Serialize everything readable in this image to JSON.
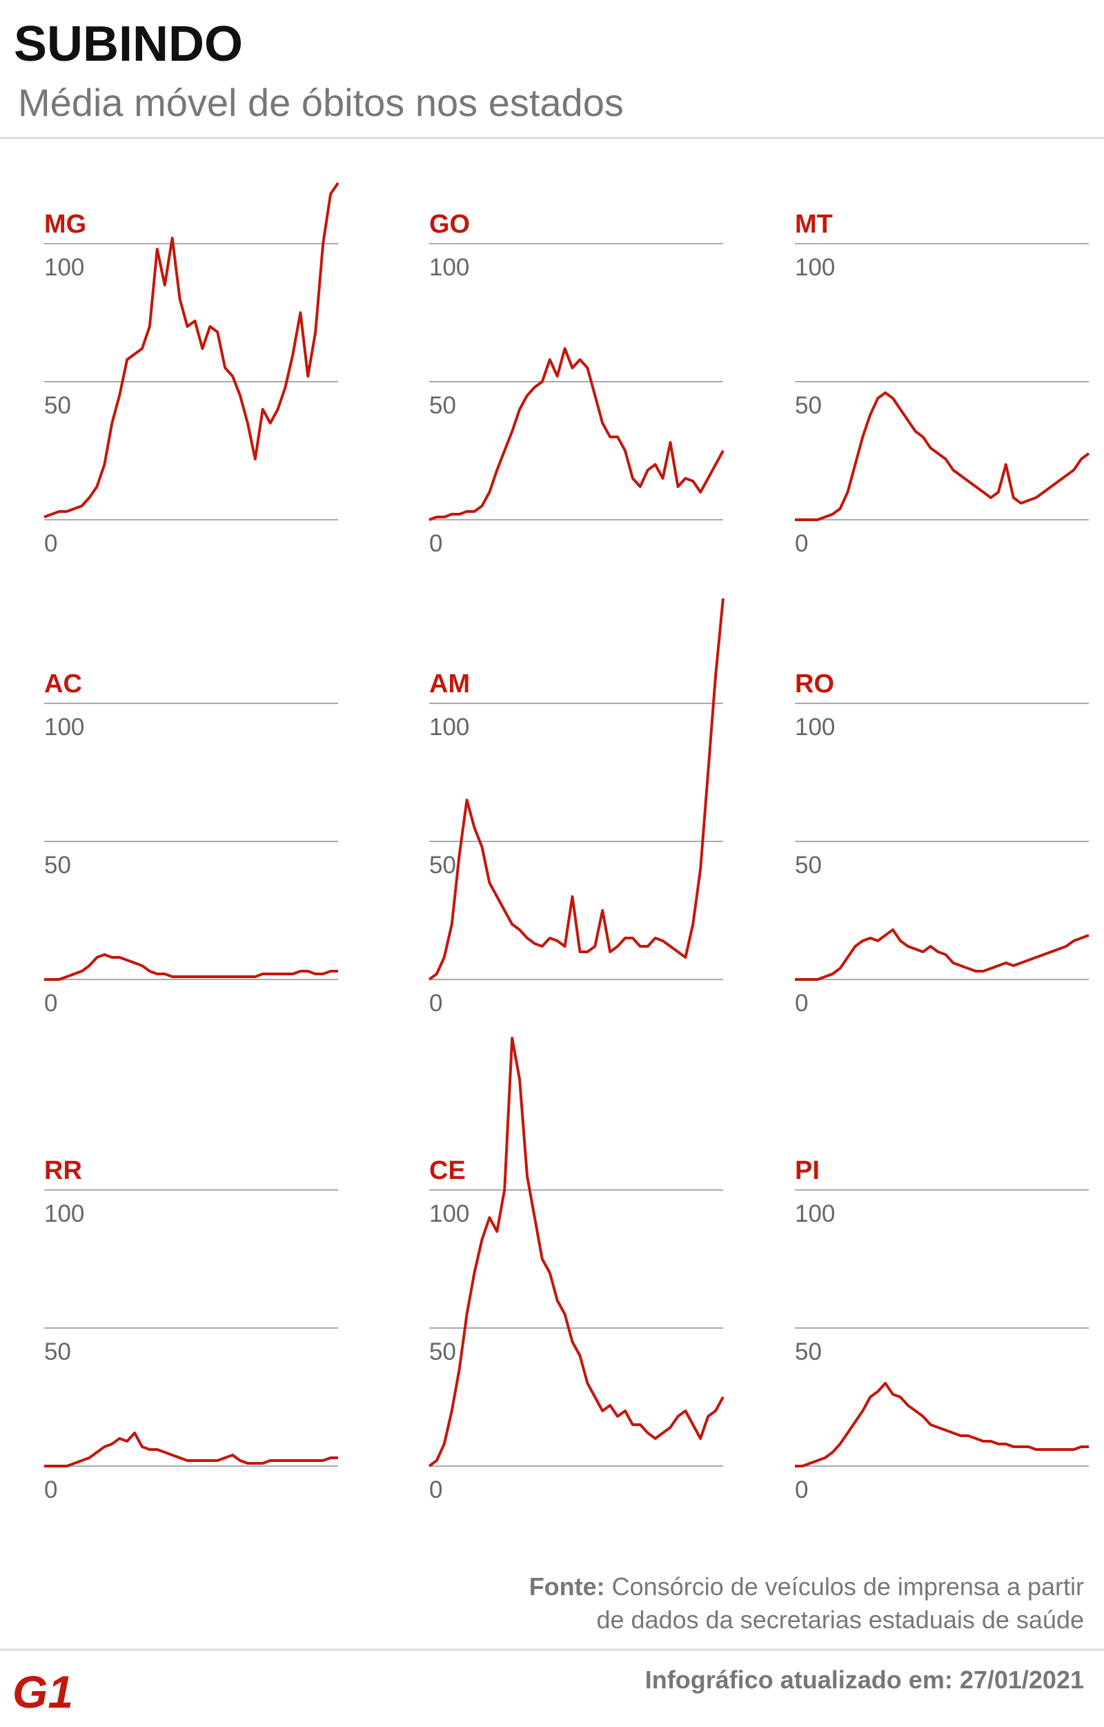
{
  "header": {
    "title": "SUBINDO",
    "subtitle": "Média móvel de óbitos nos estados"
  },
  "chart_data": [
    {
      "type": "line",
      "title": "MG",
      "color": "#c4170c",
      "ylim": [
        0,
        100
      ],
      "yticks": [
        0,
        50,
        100
      ],
      "grid": true,
      "values": [
        1,
        2,
        3,
        3,
        4,
        5,
        8,
        12,
        20,
        35,
        45,
        58,
        60,
        62,
        70,
        98,
        85,
        102,
        80,
        70,
        72,
        62,
        70,
        68,
        55,
        52,
        45,
        35,
        22,
        40,
        35,
        40,
        48,
        60,
        75,
        52,
        68,
        100,
        118,
        122
      ]
    },
    {
      "type": "line",
      "title": "GO",
      "color": "#c4170c",
      "ylim": [
        0,
        100
      ],
      "yticks": [
        0,
        50,
        100
      ],
      "grid": true,
      "values": [
        0,
        1,
        1,
        2,
        2,
        3,
        3,
        5,
        10,
        18,
        25,
        32,
        40,
        45,
        48,
        50,
        58,
        52,
        62,
        55,
        58,
        55,
        45,
        35,
        30,
        30,
        25,
        15,
        12,
        18,
        20,
        15,
        28,
        12,
        15,
        14,
        10,
        15,
        20,
        25
      ]
    },
    {
      "type": "line",
      "title": "MT",
      "color": "#c4170c",
      "ylim": [
        0,
        100
      ],
      "yticks": [
        0,
        50,
        100
      ],
      "grid": true,
      "values": [
        0,
        0,
        0,
        0,
        1,
        2,
        4,
        10,
        20,
        30,
        38,
        44,
        46,
        44,
        40,
        36,
        32,
        30,
        26,
        24,
        22,
        18,
        16,
        14,
        12,
        10,
        8,
        10,
        20,
        8,
        6,
        7,
        8,
        10,
        12,
        14,
        16,
        18,
        22,
        24
      ]
    },
    {
      "type": "line",
      "title": "AC",
      "color": "#c4170c",
      "ylim": [
        0,
        100
      ],
      "yticks": [
        0,
        50,
        100
      ],
      "grid": true,
      "values": [
        0,
        0,
        0,
        1,
        2,
        3,
        5,
        8,
        9,
        8,
        8,
        7,
        6,
        5,
        3,
        2,
        2,
        1,
        1,
        1,
        1,
        1,
        1,
        1,
        1,
        1,
        1,
        1,
        1,
        2,
        2,
        2,
        2,
        2,
        3,
        3,
        2,
        2,
        3,
        3
      ]
    },
    {
      "type": "line",
      "title": "AM",
      "color": "#c4170c",
      "ylim": [
        0,
        100
      ],
      "yticks": [
        0,
        50,
        100
      ],
      "grid": true,
      "values": [
        0,
        2,
        8,
        20,
        45,
        65,
        55,
        48,
        35,
        30,
        25,
        20,
        18,
        15,
        13,
        12,
        15,
        14,
        12,
        30,
        10,
        10,
        12,
        25,
        10,
        12,
        15,
        15,
        12,
        12,
        15,
        14,
        12,
        10,
        8,
        20,
        40,
        75,
        110,
        138
      ]
    },
    {
      "type": "line",
      "title": "RO",
      "color": "#c4170c",
      "ylim": [
        0,
        100
      ],
      "yticks": [
        0,
        50,
        100
      ],
      "grid": true,
      "values": [
        0,
        0,
        0,
        0,
        1,
        2,
        4,
        8,
        12,
        14,
        15,
        14,
        16,
        18,
        14,
        12,
        11,
        10,
        12,
        10,
        9,
        6,
        5,
        4,
        3,
        3,
        4,
        5,
        6,
        5,
        6,
        7,
        8,
        9,
        10,
        11,
        12,
        14,
        15,
        16
      ]
    },
    {
      "type": "line",
      "title": "RR",
      "color": "#c4170c",
      "ylim": [
        0,
        100
      ],
      "yticks": [
        0,
        50,
        100
      ],
      "grid": true,
      "values": [
        0,
        0,
        0,
        0,
        1,
        2,
        3,
        5,
        7,
        8,
        10,
        9,
        12,
        7,
        6,
        6,
        5,
        4,
        3,
        2,
        2,
        2,
        2,
        2,
        3,
        4,
        2,
        1,
        1,
        1,
        2,
        2,
        2,
        2,
        2,
        2,
        2,
        2,
        3,
        3
      ]
    },
    {
      "type": "line",
      "title": "CE",
      "color": "#c4170c",
      "ylim": [
        0,
        100
      ],
      "yticks": [
        0,
        50,
        100
      ],
      "grid": true,
      "values": [
        0,
        2,
        8,
        20,
        35,
        55,
        70,
        82,
        90,
        85,
        100,
        155,
        140,
        105,
        90,
        75,
        70,
        60,
        55,
        45,
        40,
        30,
        25,
        20,
        22,
        18,
        20,
        15,
        15,
        12,
        10,
        12,
        14,
        18,
        20,
        15,
        10,
        18,
        20,
        25
      ]
    },
    {
      "type": "line",
      "title": "PI",
      "color": "#c4170c",
      "ylim": [
        0,
        100
      ],
      "yticks": [
        0,
        50,
        100
      ],
      "grid": true,
      "values": [
        0,
        0,
        1,
        2,
        3,
        5,
        8,
        12,
        16,
        20,
        25,
        27,
        30,
        26,
        25,
        22,
        20,
        18,
        15,
        14,
        13,
        12,
        11,
        11,
        10,
        9,
        9,
        8,
        8,
        7,
        7,
        7,
        6,
        6,
        6,
        6,
        6,
        6,
        7,
        7
      ]
    }
  ],
  "footer": {
    "source_label": "Fonte:",
    "source_lines": [
      "Consórcio de veículos de imprensa a partir",
      "de dados da secretarias estaduais de saúde"
    ],
    "logo": "G1",
    "updated": "Infográfico atualizado em: 27/01/2021"
  }
}
